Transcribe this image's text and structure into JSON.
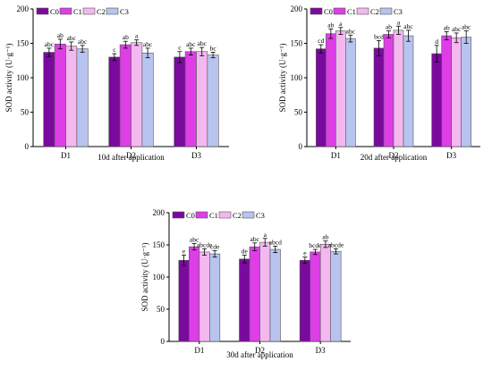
{
  "chart_data": [
    {
      "type": "bar",
      "caption": "10d after application",
      "ylabel": "SOD activity (U·g⁻¹)",
      "ylim": [
        0,
        200
      ],
      "yticks": [
        "0",
        "50",
        "100",
        "150",
        "200"
      ],
      "categories": [
        "D1",
        "D2",
        "D3"
      ],
      "legend_position": "top-left",
      "series": [
        {
          "name": "C0",
          "color": "#7a0a9e",
          "values": [
            137,
            130,
            130
          ],
          "errors": [
            6,
            5,
            8
          ],
          "letters": [
            "abc",
            "c",
            "c"
          ]
        },
        {
          "name": "C1",
          "color": "#dd3ee6",
          "values": [
            149,
            148,
            138
          ],
          "errors": [
            7,
            5,
            5
          ],
          "letters": [
            "ab",
            "ab",
            "abc"
          ]
        },
        {
          "name": "C2",
          "color": "#f3b8ef",
          "values": [
            146,
            151,
            138
          ],
          "errors": [
            6,
            4,
            6
          ],
          "letters": [
            "abc",
            "a",
            "abc"
          ]
        },
        {
          "name": "C3",
          "color": "#b8c4ef",
          "values": [
            142,
            136,
            133
          ],
          "errors": [
            5,
            7,
            4
          ],
          "letters": [
            "abc",
            "abc",
            "bc"
          ]
        }
      ]
    },
    {
      "type": "bar",
      "caption": "20d after application",
      "ylabel": "SOD activity (U·g⁻¹)",
      "ylim": [
        0,
        200
      ],
      "yticks": [
        "0",
        "50",
        "100",
        "150",
        "200"
      ],
      "categories": [
        "D1",
        "D2",
        "D3"
      ],
      "legend_position": "top-left",
      "series": [
        {
          "name": "C0",
          "color": "#7a0a9e",
          "values": [
            142,
            143,
            135
          ],
          "errors": [
            6,
            11,
            12
          ],
          "letters": [
            "cd",
            "bcd",
            "d"
          ]
        },
        {
          "name": "C1",
          "color": "#dd3ee6",
          "values": [
            164,
            163,
            161
          ],
          "errors": [
            7,
            5,
            6
          ],
          "letters": [
            "ab",
            "ab",
            "ab"
          ]
        },
        {
          "name": "C2",
          "color": "#f3b8ef",
          "values": [
            168,
            169,
            158
          ],
          "errors": [
            5,
            6,
            7
          ],
          "letters": [
            "a",
            "a",
            "abc"
          ]
        },
        {
          "name": "C3",
          "color": "#b8c4ef",
          "values": [
            157,
            161,
            159
          ],
          "errors": [
            5,
            8,
            9
          ],
          "letters": [
            "abc",
            "abc",
            "abc"
          ]
        }
      ]
    },
    {
      "type": "bar",
      "caption": "30d after application",
      "ylabel": "SOD activity (U·g⁻¹)",
      "ylim": [
        0,
        200
      ],
      "yticks": [
        "0",
        "50",
        "100",
        "150",
        "200"
      ],
      "categories": [
        "D1",
        "D2",
        "D3"
      ],
      "legend_position": "top-left",
      "series": [
        {
          "name": "C0",
          "color": "#7a0a9e",
          "values": [
            126,
            128,
            126
          ],
          "errors": [
            8,
            6,
            5
          ],
          "letters": [
            "e",
            "de",
            "e"
          ]
        },
        {
          "name": "C1",
          "color": "#dd3ee6",
          "values": [
            147,
            147,
            139
          ],
          "errors": [
            5,
            6,
            4
          ],
          "letters": [
            "abc",
            "abc",
            "bcde"
          ]
        },
        {
          "name": "C2",
          "color": "#f3b8ef",
          "values": [
            139,
            154,
            151
          ],
          "errors": [
            5,
            6,
            5
          ],
          "letters": [
            "abcde",
            "a",
            "ab"
          ]
        },
        {
          "name": "C3",
          "color": "#b8c4ef",
          "values": [
            136,
            143,
            140
          ],
          "errors": [
            5,
            5,
            4
          ],
          "letters": [
            "cde",
            "abcd",
            "abcde"
          ]
        }
      ]
    }
  ]
}
